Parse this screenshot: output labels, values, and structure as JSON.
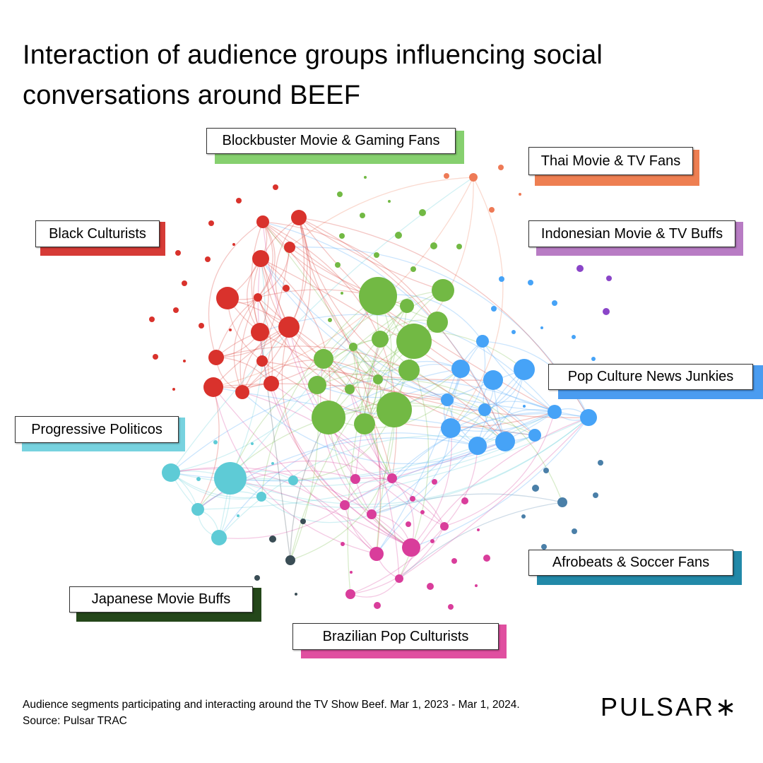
{
  "title": "Interaction of audience groups influencing social conversations around BEEF",
  "groups": [
    {
      "id": "blockbuster",
      "label": "Blockbuster Movie & Gaming Fans",
      "color": "#72b944",
      "shadow": "#86d06f"
    },
    {
      "id": "thai",
      "label": "Thai Movie & TV Fans",
      "color": "#ee7a56",
      "shadow": "#ee7f52"
    },
    {
      "id": "black",
      "label": "Black Culturists",
      "color": "#d9322c",
      "shadow": "#d63b36"
    },
    {
      "id": "indonesian",
      "label": "Indonesian Movie & TV Buffs",
      "color": "#8a45c8",
      "shadow": "#b87cc4"
    },
    {
      "id": "popnews",
      "label": "Pop Culture News Junkies",
      "color": "#46a3f7",
      "shadow": "#4a9cf0"
    },
    {
      "id": "progressive",
      "label": "Progressive Politicos",
      "color": "#5ecbd6",
      "shadow": "#77d2df"
    },
    {
      "id": "afrobeats",
      "label": "Afrobeats & Soccer Fans",
      "color": "#4a7fa8",
      "shadow": "#2289a8"
    },
    {
      "id": "japanese",
      "label": "Japanese Movie Buffs",
      "color": "#3a4d55",
      "shadow": "#24471a"
    },
    {
      "id": "brazilian",
      "label": "Brazilian Pop Culturists",
      "color": "#d93d9b",
      "shadow": "#e04fa0"
    }
  ],
  "footer": {
    "caption": "Audience segments participating and interacting around the TV Show Beef. Mar 1, 2023 - Mar 1, 2024.",
    "source": "Source: Pulsar TRAC"
  },
  "logo": "PULSAR∗"
}
